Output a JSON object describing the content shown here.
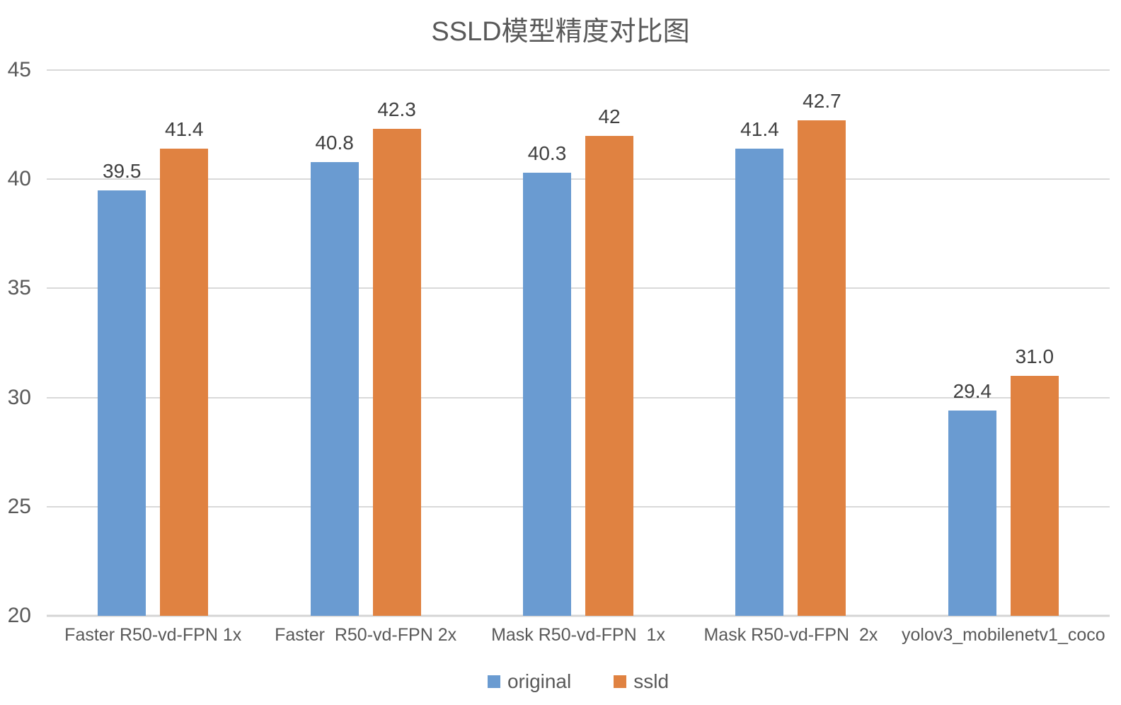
{
  "chart_data": {
    "type": "bar",
    "title": "SSLD模型精度对比图",
    "categories": [
      "Faster R50-vd-FPN 1x",
      "Faster  R50-vd-FPN 2x",
      "Mask R50-vd-FPN  1x",
      "Mask R50-vd-FPN  2x",
      "yolov3_mobilenetv1_coco"
    ],
    "series": [
      {
        "name": "original",
        "color": "#6A9BD1",
        "values": [
          39.5,
          40.8,
          40.3,
          41.4,
          29.4
        ],
        "value_labels": [
          "39.5",
          "40.8",
          "40.3",
          "41.4",
          "29.4"
        ]
      },
      {
        "name": "ssld",
        "color": "#E08241",
        "values": [
          41.4,
          42.3,
          42.0,
          42.7,
          31.0
        ],
        "value_labels": [
          "41.4",
          "42.3",
          "42",
          "42.7",
          "31.0"
        ]
      }
    ],
    "xlabel": "",
    "ylabel": "",
    "ylim": [
      20,
      45
    ],
    "yticks": [
      "45",
      "40",
      "35",
      "30",
      "25",
      "20"
    ],
    "grid": true,
    "legend_position": "bottom",
    "colors": {
      "grid": "#D9D9D9",
      "baseline": "#D4D4D4",
      "title_text": "#595959",
      "axis_text": "#595959",
      "data_label_text": "#404040"
    }
  }
}
